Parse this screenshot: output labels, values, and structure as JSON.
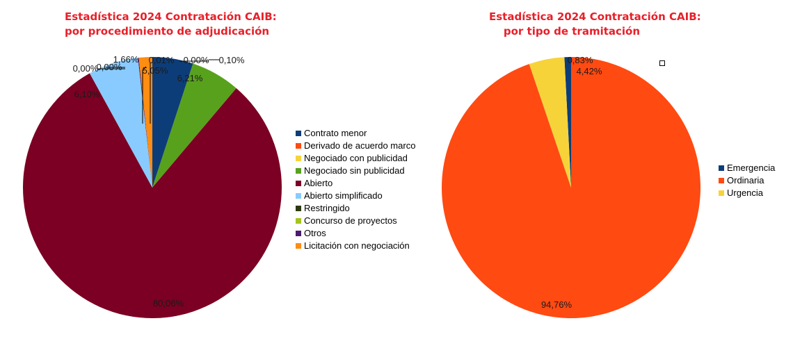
{
  "chart_data": [
    {
      "type": "pie",
      "title": "Estadística 2024 Contratación CAIB:\npor procedimiento de adjudicación",
      "slices": [
        {
          "label": "Contrato menor",
          "value": 5.05,
          "data_label": "5,05%",
          "color": "#0d3d78"
        },
        {
          "label": "Derivado de acuerdo marco",
          "value": 0.0,
          "data_label": "0,00%",
          "color": "#ff4a12"
        },
        {
          "label": "Negociado con publicidad",
          "value": 0.0,
          "data_label": "0,00%",
          "color": "#f7d33a"
        },
        {
          "label": "Negociado sin publicidad",
          "value": 6.1,
          "data_label": "6,10%",
          "color": "#58a11d"
        },
        {
          "label": "Abierto",
          "value": 80.06,
          "data_label": "80,06%",
          "color": "#7b0023"
        },
        {
          "label": "Abierto simplificado",
          "value": 6.21,
          "data_label": "6,21%",
          "color": "#89cbff"
        },
        {
          "label": "Restringido",
          "value": 0.01,
          "data_label": "0,01%",
          "color": "#2b3a0c"
        },
        {
          "label": "Concurso de proyectos",
          "value": 0.0,
          "data_label": "0,00%",
          "color": "#a5c31c"
        },
        {
          "label": "Otros",
          "value": 0.1,
          "data_label": "0,10%",
          "color": "#4b1b6e"
        },
        {
          "label": "Licitación con negociación",
          "value": 1.66,
          "data_label": "1,66%",
          "color": "#ff8d12"
        }
      ],
      "legend_position": "right"
    },
    {
      "type": "pie",
      "title": "Estadística 2024 Contratación CAIB:\n    por tipo de tramitación",
      "slices": [
        {
          "label": "Emergencia",
          "value": 0.83,
          "data_label": "0,83%",
          "color": "#0d3d78"
        },
        {
          "label": "Ordinaria",
          "value": 94.76,
          "data_label": "94,76%",
          "color": "#ff4a12"
        },
        {
          "label": "Urgencia",
          "value": 4.42,
          "data_label": "4,42%",
          "color": "#f7d33a"
        }
      ],
      "legend_position": "right"
    }
  ]
}
